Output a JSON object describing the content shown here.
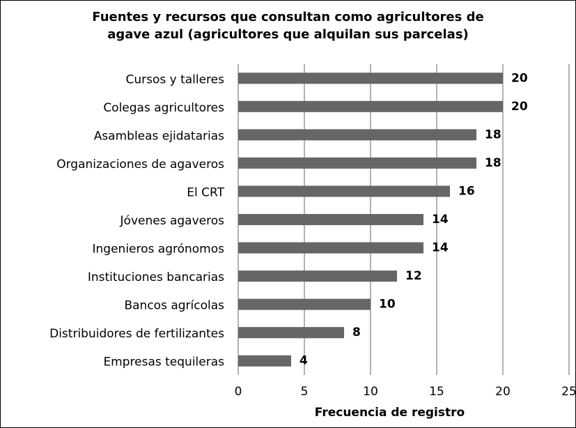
{
  "chart_data": {
    "type": "bar",
    "orientation": "horizontal",
    "title": "Fuentes y recursos que consultan como agricultores  de agave azul (agricultores que alquilan sus parcelas)",
    "x_label": "Frecuencia de registro",
    "categories": [
      "Cursos y talleres",
      "Colegas agricultores",
      "Asambleas ejidatarias",
      "Organizaciones de agaveros",
      "El CRT",
      "Jóvenes agaveros",
      "Ingenieros agrónomos",
      "Instituciones bancarias",
      "Bancos agrícolas",
      "Distribuidores de fertilizantes",
      "Empresas tequileras"
    ],
    "values": [
      20,
      20,
      18,
      18,
      16,
      14,
      14,
      12,
      10,
      8,
      4
    ],
    "color": "#666666",
    "xlim": [
      0,
      25
    ],
    "xticks": [
      0,
      5,
      10,
      15,
      20,
      25
    ],
    "grid": true
  }
}
